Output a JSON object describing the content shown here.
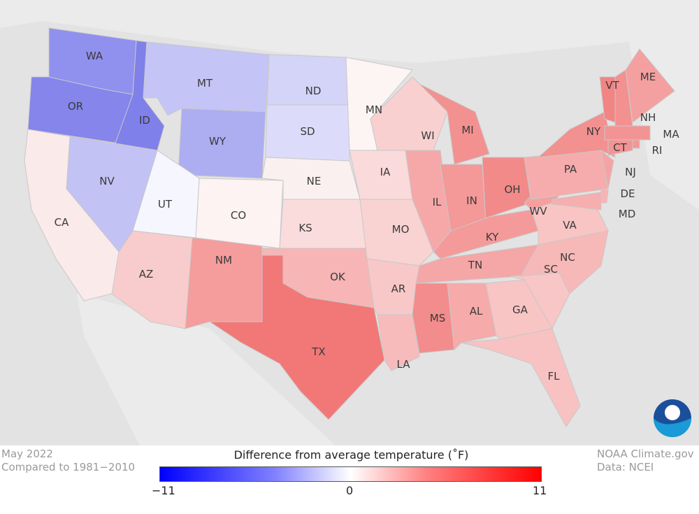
{
  "legend": {
    "title": "Difference from average temperature (˚F)",
    "min_label": "−11",
    "mid_label": "0",
    "max_label": "11",
    "min_color": "#0000ff",
    "mid_color": "#ffffff",
    "max_color": "#ff0000"
  },
  "left_note": {
    "period": "May 2022",
    "baseline": "Compared to 1981−2010"
  },
  "right_note": {
    "source": "NOAA Climate.gov",
    "data": "Data: NCEI"
  },
  "states": [
    {
      "abbr": "WA",
      "color": "#9090ee"
    },
    {
      "abbr": "OR",
      "color": "#8585ec"
    },
    {
      "abbr": "ID",
      "color": "#8080ea"
    },
    {
      "abbr": "MT",
      "color": "#c4c4f6"
    },
    {
      "abbr": "WY",
      "color": "#adadf2"
    },
    {
      "abbr": "ND",
      "color": "#d4d4f8"
    },
    {
      "abbr": "SD",
      "color": "#dcdcfa"
    },
    {
      "abbr": "NE",
      "color": "#fbf0f0"
    },
    {
      "abbr": "KS",
      "color": "#fadcdc"
    },
    {
      "abbr": "OK",
      "color": "#f7b5b5"
    },
    {
      "abbr": "TX",
      "color": "#f27878"
    },
    {
      "abbr": "NM",
      "color": "#f59c9c"
    },
    {
      "abbr": "CO",
      "color": "#fdf3f3"
    },
    {
      "abbr": "UT",
      "color": "#f6f6fe"
    },
    {
      "abbr": "AZ",
      "color": "#f8cccc"
    },
    {
      "abbr": "NV",
      "color": "#c2c2f4"
    },
    {
      "abbr": "CA",
      "color": "#fbeaea"
    },
    {
      "abbr": "MN",
      "color": "#fdf4f4"
    },
    {
      "abbr": "IA",
      "color": "#fadada"
    },
    {
      "abbr": "MO",
      "color": "#f9d2d2"
    },
    {
      "abbr": "AR",
      "color": "#f8c8c8"
    },
    {
      "abbr": "LA",
      "color": "#f7bbbb"
    },
    {
      "abbr": "WI",
      "color": "#f9d0d0"
    },
    {
      "abbr": "IL",
      "color": "#f6a8a8"
    },
    {
      "abbr": "MI",
      "color": "#f39191"
    },
    {
      "abbr": "IN",
      "color": "#f49898"
    },
    {
      "abbr": "OH",
      "color": "#f28a8a"
    },
    {
      "abbr": "KY",
      "color": "#f49a9a"
    },
    {
      "abbr": "TN",
      "color": "#f5a6a6"
    },
    {
      "abbr": "MS",
      "color": "#f38c8c"
    },
    {
      "abbr": "AL",
      "color": "#f6aaaa"
    },
    {
      "abbr": "GA",
      "color": "#f8c4c4"
    },
    {
      "abbr": "FL",
      "color": "#f8c2c2"
    },
    {
      "abbr": "SC",
      "color": "#f8c6c6"
    },
    {
      "abbr": "NC",
      "color": "#f7b8b8"
    },
    {
      "abbr": "VA",
      "color": "#f8c4c4"
    },
    {
      "abbr": "WV",
      "color": "#f4a0a0"
    },
    {
      "abbr": "PA",
      "color": "#f6acac"
    },
    {
      "abbr": "NY",
      "color": "#f39090"
    },
    {
      "abbr": "MD",
      "color": "#f6aeae"
    },
    {
      "abbr": "DE",
      "color": "#f7b4b4"
    },
    {
      "abbr": "NJ",
      "color": "#f5a4a4"
    },
    {
      "abbr": "VT",
      "color": "#f28484"
    },
    {
      "abbr": "NH",
      "color": "#f39090"
    },
    {
      "abbr": "ME",
      "color": "#f5a0a0"
    },
    {
      "abbr": "MA",
      "color": "#f39494"
    },
    {
      "abbr": "CT",
      "color": "#f39494"
    },
    {
      "abbr": "RI",
      "color": "#f39898"
    }
  ]
}
